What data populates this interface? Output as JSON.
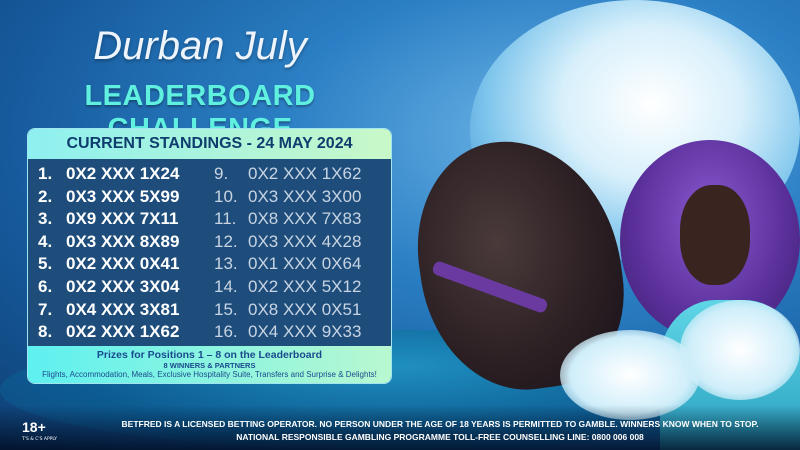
{
  "title": "Durban July",
  "subtitle": "LEADERBOARD CHALLENGE",
  "standings": {
    "header": "CURRENT STANDINGS - 24 MAY 2024",
    "left": [
      {
        "pos": "1.",
        "id": "0X2 XXX 1X24"
      },
      {
        "pos": "2.",
        "id": "0X3 XXX 5X99"
      },
      {
        "pos": "3.",
        "id": "0X9 XXX 7X11"
      },
      {
        "pos": "4.",
        "id": "0X3 XXX 8X89"
      },
      {
        "pos": "5.",
        "id": "0X2 XXX 0X41"
      },
      {
        "pos": "6.",
        "id": "0X2 XXX 3X04"
      },
      {
        "pos": "7.",
        "id": "0X4 XXX 3X81"
      },
      {
        "pos": "8.",
        "id": "0X2 XXX 1X62"
      }
    ],
    "right": [
      {
        "pos": "9.",
        "id": "0X2 XXX 1X62"
      },
      {
        "pos": "10.",
        "id": "0X3 XXX 3X00"
      },
      {
        "pos": "11.",
        "id": "0X8 XXX 7X83"
      },
      {
        "pos": "12.",
        "id": "0X3 XXX 4X28"
      },
      {
        "pos": "13.",
        "id": "0X1 XXX 0X64"
      },
      {
        "pos": "14.",
        "id": "0X2 XXX 5X12"
      },
      {
        "pos": "15.",
        "id": "0X8 XXX 0X51"
      },
      {
        "pos": "16.",
        "id": "0X4 XXX 9X33"
      }
    ]
  },
  "prizes": {
    "heading": "Prizes for Positions 1 – 8 on the Leaderboard",
    "winners": "8 WINNERS & PARTNERS",
    "details": "Flights, Accommodation, Meals, Exclusive Hospitality Suite, Transfers and Surprise & Delights!"
  },
  "footer": {
    "age": "18+",
    "tcs": "T'S & C'S APPLY",
    "line1": "BETFRED IS A LICENSED BETTING OPERATOR. NO PERSON UNDER THE AGE OF 18 YEARS IS PERMITTED TO GAMBLE. WINNERS KNOW WHEN TO STOP.",
    "line2": "NATIONAL RESPONSIBLE GAMBLING PROGRAMME TOLL-FREE COUNSELLING LINE: 0800 006 008"
  }
}
